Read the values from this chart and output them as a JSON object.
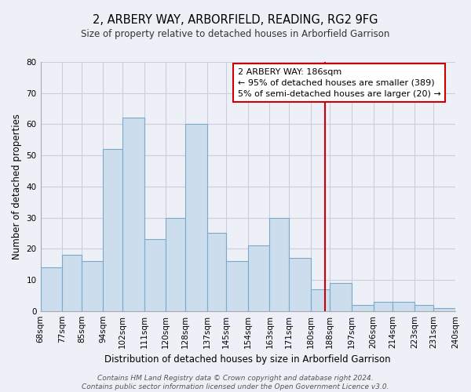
{
  "title": "2, ARBERY WAY, ARBORFIELD, READING, RG2 9FG",
  "subtitle": "Size of property relative to detached houses in Arborfield Garrison",
  "xlabel": "Distribution of detached houses by size in Arborfield Garrison",
  "ylabel": "Number of detached properties",
  "bin_edges": [
    68,
    77,
    85,
    94,
    102,
    111,
    120,
    128,
    137,
    145,
    154,
    163,
    171,
    180,
    188,
    197,
    206,
    214,
    223,
    231,
    240
  ],
  "bar_heights": [
    14,
    18,
    16,
    52,
    62,
    23,
    30,
    60,
    25,
    16,
    21,
    30,
    17,
    7,
    9,
    2,
    3,
    3,
    2,
    1
  ],
  "bar_color": "#ccdded",
  "bar_edge_color": "#7aaac8",
  "grid_color": "#ccccdd",
  "vline_x": 186,
  "vline_color": "#cc0000",
  "annotation_box_text": "2 ARBERY WAY: 186sqm\n← 95% of detached houses are smaller (389)\n5% of semi-detached houses are larger (20) →",
  "annotation_box_color": "#ffffff",
  "annotation_box_edge_color": "#cc0000",
  "tick_labels": [
    "68sqm",
    "77sqm",
    "85sqm",
    "94sqm",
    "102sqm",
    "111sqm",
    "120sqm",
    "128sqm",
    "137sqm",
    "145sqm",
    "154sqm",
    "163sqm",
    "171sqm",
    "180sqm",
    "188sqm",
    "197sqm",
    "206sqm",
    "214sqm",
    "223sqm",
    "231sqm",
    "240sqm"
  ],
  "ylim": [
    0,
    80
  ],
  "yticks": [
    0,
    10,
    20,
    30,
    40,
    50,
    60,
    70,
    80
  ],
  "footer_text": "Contains HM Land Registry data © Crown copyright and database right 2024.\nContains public sector information licensed under the Open Government Licence v3.0.",
  "background_color": "#eef0f8",
  "title_fontsize": 10.5,
  "subtitle_fontsize": 8.5,
  "xlabel_fontsize": 8.5,
  "ylabel_fontsize": 8.5,
  "tick_fontsize": 7.5,
  "annotation_fontsize": 8.0,
  "footer_fontsize": 6.5
}
